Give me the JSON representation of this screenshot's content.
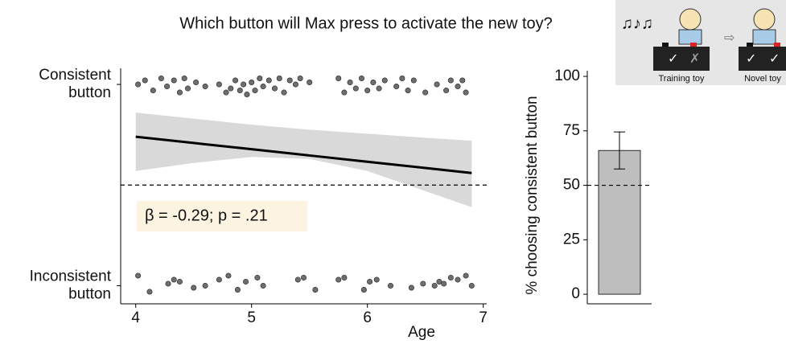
{
  "title": "Which button will Max press to activate the new toy?",
  "illustration": {
    "labels": [
      "Training toy",
      "Novel toy"
    ]
  },
  "chart_data": [
    {
      "type": "scatter",
      "xlabel": "Age",
      "xlim": [
        3.87,
        7.03
      ],
      "xticks": [
        4,
        5,
        6,
        7
      ],
      "ylim": [
        -0.09,
        1.08
      ],
      "yticks": [
        {
          "value": 0,
          "label": "Inconsistent button"
        },
        {
          "value": 1,
          "label": "Consistent button"
        }
      ],
      "hline": 0.5,
      "annotation": "β = -0.29; p = .21",
      "annotation_color": "#fdf3e1",
      "series": [
        {
          "color": "#555555",
          "x": [
            4.02,
            4.08,
            4.15,
            4.22,
            4.27,
            4.33,
            4.38,
            4.42,
            4.45,
            4.52,
            4.6,
            4.72,
            4.78,
            4.82,
            4.86,
            4.9,
            4.93,
            4.96,
            5.0,
            5.03,
            5.07,
            5.1,
            5.15,
            5.2,
            5.24,
            5.28,
            5.33,
            5.38,
            5.42,
            5.5,
            5.75,
            5.8,
            5.85,
            5.9,
            5.95,
            6.0,
            6.05,
            6.1,
            6.15,
            6.25,
            6.3,
            6.35,
            6.4,
            6.5,
            6.6,
            6.68,
            6.72,
            6.78,
            6.82,
            6.85,
            4.02,
            4.12,
            4.28,
            4.33,
            4.38,
            4.5,
            4.6,
            4.72,
            4.8,
            4.88,
            4.95,
            5.05,
            5.1,
            5.4,
            5.45,
            5.55,
            5.75,
            5.8,
            5.97,
            6.02,
            6.08,
            6.2,
            6.38,
            6.48,
            6.58,
            6.62,
            6.66,
            6.72,
            6.78,
            6.85,
            6.9
          ],
          "values": [
            1.0,
            1.02,
            0.97,
            1.03,
            0.99,
            1.02,
            0.96,
            1.03,
            0.98,
            1.01,
            0.99,
            1.0,
            0.96,
            0.98,
            1.02,
            0.97,
            1.0,
            0.95,
            1.01,
            0.97,
            1.03,
            0.99,
            1.02,
            0.98,
            1.03,
            0.96,
            1.02,
            1.0,
            1.03,
            1.01,
            1.03,
            0.96,
            1.01,
            0.98,
            1.03,
            0.97,
            1.01,
            0.98,
            1.02,
            0.99,
            1.03,
            0.97,
            1.02,
            0.96,
            1.0,
            0.97,
            1.02,
            0.99,
            1.02,
            0.96,
            0.05,
            -0.03,
            0.01,
            0.03,
            0.02,
            -0.01,
            0.0,
            0.03,
            0.05,
            -0.02,
            0.02,
            0.04,
            0.0,
            0.03,
            0.04,
            -0.02,
            0.03,
            0.04,
            -0.02,
            0.02,
            0.03,
            0.0,
            -0.01,
            0.01,
            0.0,
            0.02,
            0.01,
            0.04,
            0.03,
            0.05,
            0.0
          ]
        }
      ],
      "fit": {
        "color": "#000000",
        "band_color": "#d9d9d9",
        "x": [
          4,
          4.5,
          5,
          5.5,
          6,
          6.5,
          6.9
        ],
        "values": [
          0.74,
          0.709,
          0.678,
          0.647,
          0.616,
          0.585,
          0.56
        ],
        "upper": [
          0.86,
          0.83,
          0.8,
          0.775,
          0.755,
          0.735,
          0.72
        ],
        "lower": [
          0.57,
          0.61,
          0.64,
          0.63,
          0.57,
          0.47,
          0.39
        ]
      }
    },
    {
      "type": "bar",
      "ylabel": "% choosing consistent button",
      "categories": [
        null
      ],
      "values": [
        66
      ],
      "errors": [
        8.5
      ],
      "color": "#bebebe",
      "ylim": [
        -4.4,
        102.6
      ],
      "yticks": [
        0,
        25,
        50,
        75,
        100
      ],
      "hline": 50
    }
  ]
}
